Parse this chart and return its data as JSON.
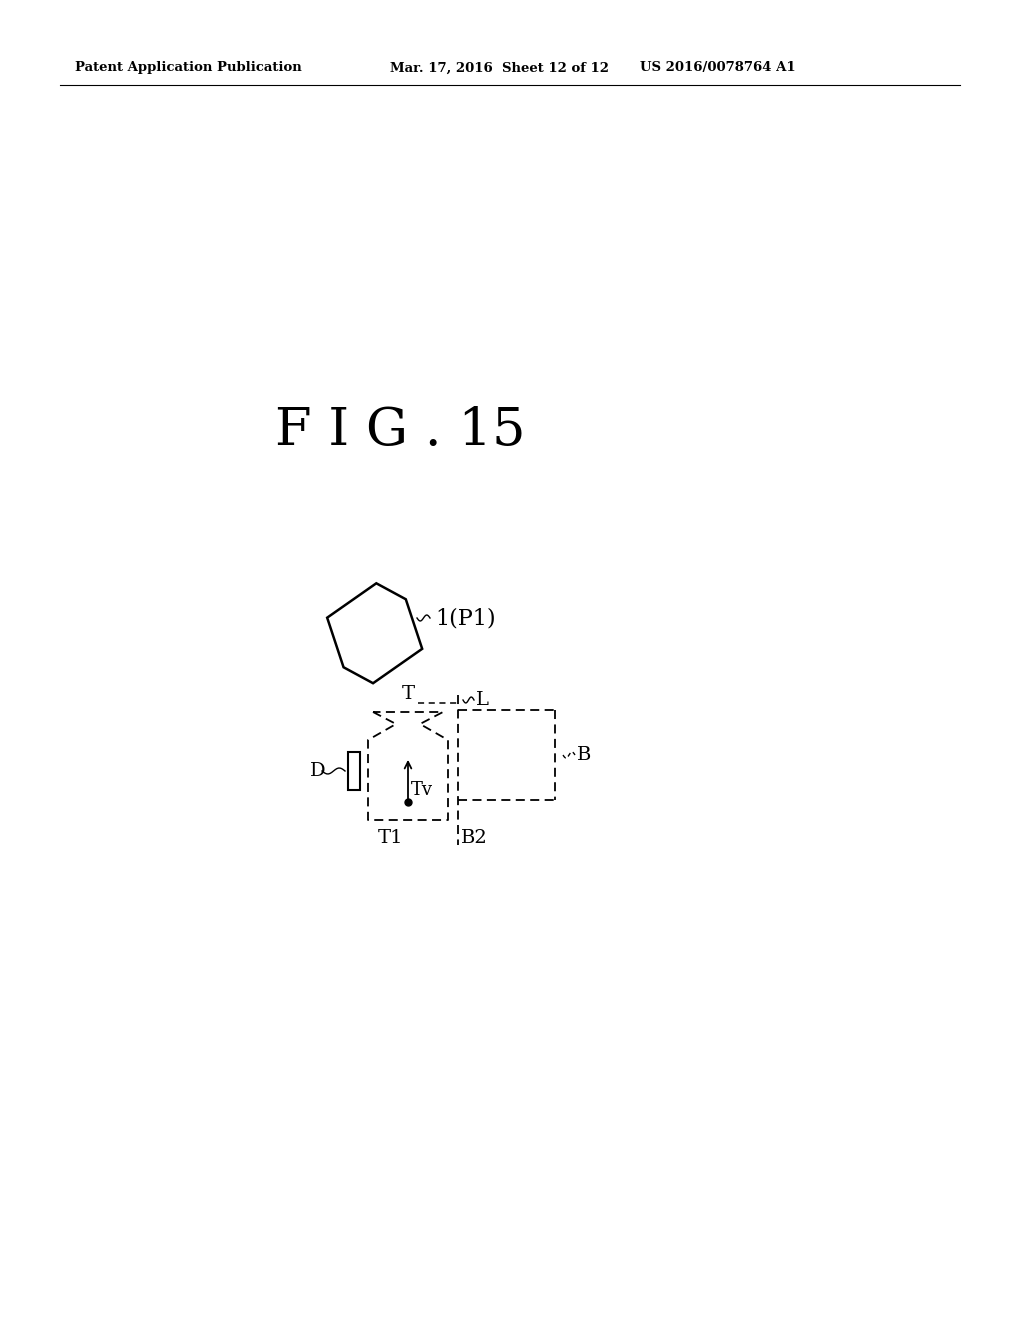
{
  "title": "F I G . 15",
  "header_left": "Patent Application Publication",
  "header_mid": "Mar. 17, 2016  Sheet 12 of 12",
  "header_right": "US 2016/0078764 A1",
  "background_color": "#ffffff",
  "text_color": "#000000",
  "fig_width": 10.24,
  "fig_height": 13.2,
  "dpi": 100
}
